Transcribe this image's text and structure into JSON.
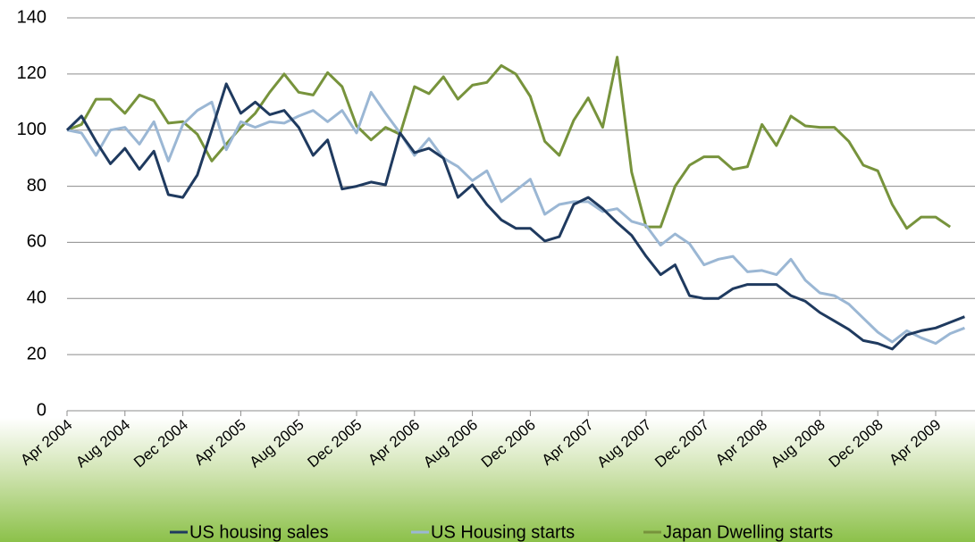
{
  "chart_data": {
    "type": "line",
    "categories": [
      "Apr 2004",
      null,
      null,
      null,
      "Aug 2004",
      null,
      null,
      null,
      "Dec 2004",
      null,
      null,
      null,
      "Apr 2005",
      null,
      null,
      null,
      "Aug 2005",
      null,
      null,
      null,
      "Dec 2005",
      null,
      null,
      null,
      "Apr 2006",
      null,
      null,
      null,
      "Aug 2006",
      null,
      null,
      null,
      "Dec 2006",
      null,
      null,
      null,
      "Apr 2007",
      null,
      null,
      null,
      "Aug 2007",
      null,
      null,
      null,
      "Dec 2007",
      null,
      null,
      null,
      "Apr 2008",
      null,
      null,
      null,
      "Aug 2008",
      null,
      null,
      null,
      "Dec 2008",
      null,
      null,
      null,
      "Apr 2009",
      null,
      null
    ],
    "series": [
      {
        "name": "US housing sales",
        "color": "#1f3a5f",
        "values": [
          100,
          105,
          96,
          88,
          93.5,
          86,
          92.5,
          77,
          76,
          84,
          100,
          116.5,
          106,
          110,
          105.5,
          107,
          101,
          91,
          96.5,
          79,
          80,
          81.5,
          80.5,
          99,
          92,
          93.5,
          90,
          76,
          80.5,
          73.5,
          68,
          65,
          65,
          60.5,
          62,
          73.5,
          76,
          72,
          67,
          62.5,
          55,
          48.5,
          52,
          41,
          40,
          40,
          43.5,
          45,
          45,
          45,
          41,
          39,
          35,
          32,
          29,
          25,
          24,
          22,
          27,
          28.5,
          29.5,
          31.5,
          33.5
        ]
      },
      {
        "name": "US Housing starts",
        "color": "#9bb7d4",
        "values": [
          100,
          99,
          91,
          100,
          101,
          95,
          103,
          89,
          102,
          107,
          110,
          93,
          103,
          101,
          103,
          102.5,
          105,
          107,
          103,
          107,
          99,
          113.5,
          106,
          99,
          91,
          97,
          90,
          87,
          82,
          85.5,
          74.5,
          78.5,
          82.5,
          70,
          73.5,
          74.5,
          74.5,
          71,
          72,
          67.5,
          66,
          59,
          63,
          59.5,
          52,
          54,
          55,
          49.5,
          50,
          48.5,
          54,
          46.5,
          42,
          41,
          38,
          33,
          28,
          24.5,
          28.5,
          26,
          24,
          27.5,
          29.5
        ]
      },
      {
        "name": "Japan Dwelling starts",
        "color": "#77933c",
        "values": [
          100,
          102,
          111,
          111,
          106,
          112.5,
          110.5,
          102.5,
          103,
          98.5,
          89,
          95,
          101,
          106,
          113.5,
          120,
          113.5,
          112.5,
          120.5,
          115.5,
          101.5,
          96.5,
          101,
          98.5,
          115.5,
          113,
          119,
          111,
          116,
          117,
          123,
          120,
          112,
          96,
          91,
          103.5,
          111.5,
          101,
          126,
          85,
          65.5,
          65.5,
          80,
          87.5,
          90.5,
          90.5,
          86,
          87,
          102,
          94.5,
          105,
          101.5,
          101,
          101,
          96,
          87.5,
          85.5,
          73.5,
          65,
          69,
          69,
          65.5,
          null
        ]
      }
    ],
    "ylim": [
      0,
      140
    ],
    "yticks": [
      0,
      20,
      40,
      60,
      80,
      100,
      120,
      140
    ],
    "grid": true,
    "legend": "bottom"
  }
}
